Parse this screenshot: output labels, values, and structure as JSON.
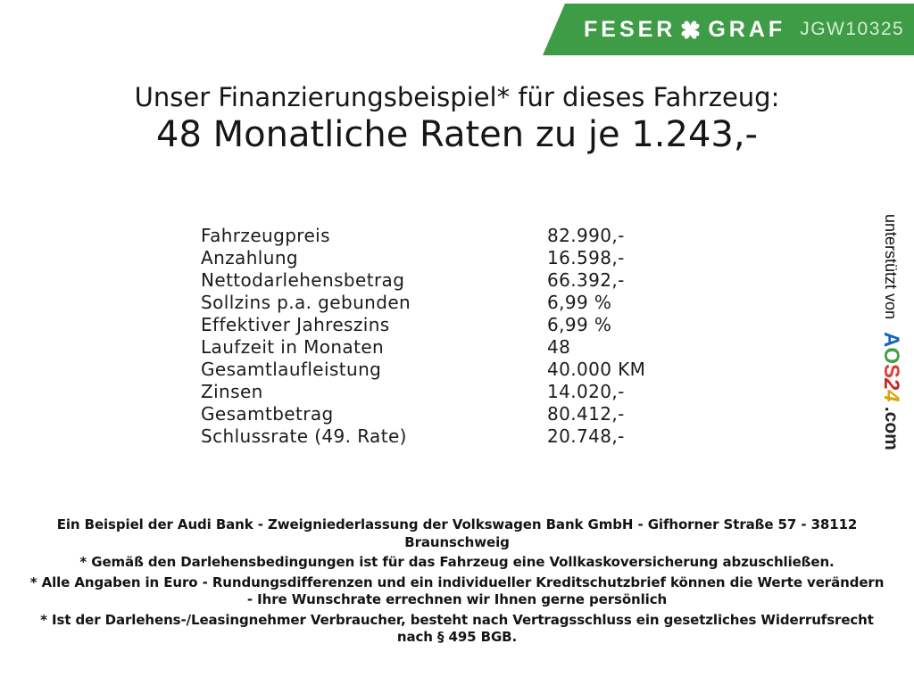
{
  "banner": {
    "brand_left": "FESER",
    "brand_right": "GRAF",
    "vehicle_code": "JGW10325"
  },
  "title": {
    "line1": "Unser Finanzierungsbeispiel* für dieses Fahrzeug:",
    "line2": "48 Monatliche Raten zu je 1.243,-"
  },
  "finance_table": {
    "rows": [
      {
        "label": "Fahrzeugpreis",
        "value": "82.990,-"
      },
      {
        "label": "Anzahlung",
        "value": "16.598,-"
      },
      {
        "label": "Nettodarlehensbetrag",
        "value": "66.392,-"
      },
      {
        "label": "Sollzins p.a. gebunden",
        "value": "6,99 %"
      },
      {
        "label": "Effektiver Jahreszins",
        "value": "6,99 %"
      },
      {
        "label": "Laufzeit in Monaten",
        "value": "48"
      },
      {
        "label": "Gesamtlaufleistung",
        "value": "40.000 KM"
      },
      {
        "label": "Zinsen",
        "value": "14.020,-"
      },
      {
        "label": "Gesamtbetrag",
        "value": "80.412,-"
      },
      {
        "label": "Schlussrate (49. Rate)",
        "value": "20.748,-"
      }
    ]
  },
  "support": {
    "prefix": "unterstützt von ",
    "logo_letters": [
      {
        "char": "A",
        "color": "#1565C0",
        "italic": false
      },
      {
        "char": "O",
        "color": "#43A047",
        "italic": false
      },
      {
        "char": "S",
        "color": "#E53935",
        "italic": false
      },
      {
        "char": "2",
        "color": "#C62828",
        "italic": true
      },
      {
        "char": "4",
        "color": "#D9A40B",
        "italic": true
      }
    ],
    "suffix": ".com"
  },
  "footer": {
    "paragraphs": [
      [
        "Ein Beispiel der Audi Bank - Zweigniederlassung der Volkswagen Bank GmbH - Gifhorner Straße 57 - 38112",
        "Braunschweig"
      ],
      [
        "* Gemäß den Darlehensbedingungen ist für das Fahrzeug eine Vollkaskoversicherung abzuschließen."
      ],
      [
        "* Alle Angaben in Euro - Rundungsdifferenzen und ein individueller Kreditschutzbrief können die Werte verändern",
        "- Ihre Wunschrate errechnen wir Ihnen gerne persönlich"
      ],
      [
        "* Ist der Darlehens-/Leasingnehmer Verbraucher, besteht nach Vertragsschluss ein gesetzliches Widerrufsrecht",
        "nach § 495 BGB."
      ]
    ]
  },
  "colors": {
    "banner_green": "#3E9C46",
    "banner_text": "#FFFFFF",
    "code_text": "#D6ECD4"
  },
  "icons": {
    "clover": "four-leaf-clover"
  }
}
